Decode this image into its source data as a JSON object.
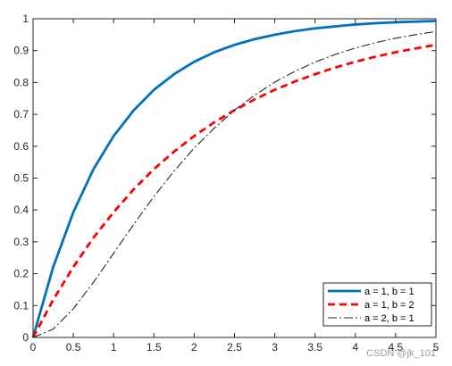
{
  "watermark": "CSDN @jk_101",
  "chart_data": {
    "type": "line",
    "title": "",
    "xlabel": "",
    "ylabel": "",
    "xlim": [
      0,
      5
    ],
    "ylim": [
      0,
      1
    ],
    "xticks": [
      "0",
      "0.5",
      "1",
      "1.5",
      "2",
      "2.5",
      "3",
      "3.5",
      "4",
      "4.5",
      "5"
    ],
    "yticks": [
      "0",
      "0.1",
      "0.2",
      "0.3",
      "0.4",
      "0.5",
      "0.6",
      "0.7",
      "0.8",
      "0.9",
      "1"
    ],
    "grid": false,
    "legend_position": "bottom-right",
    "x": [
      0,
      0.25,
      0.5,
      0.75,
      1,
      1.25,
      1.5,
      1.75,
      2,
      2.25,
      2.5,
      2.75,
      3,
      3.25,
      3.5,
      3.75,
      4,
      4.25,
      4.5,
      4.75,
      5
    ],
    "series": [
      {
        "name": "a = 1, b = 1",
        "color": "#0072BD",
        "style": "solid",
        "values": [
          0,
          0.221,
          0.393,
          0.528,
          0.632,
          0.713,
          0.777,
          0.826,
          0.865,
          0.895,
          0.918,
          0.936,
          0.95,
          0.961,
          0.97,
          0.976,
          0.982,
          0.986,
          0.989,
          0.991,
          0.993
        ]
      },
      {
        "name": "a = 1, b = 2",
        "color": "#FF0000",
        "style": "dashed",
        "values": [
          0,
          0.118,
          0.221,
          0.313,
          0.393,
          0.465,
          0.528,
          0.583,
          0.632,
          0.675,
          0.713,
          0.747,
          0.777,
          0.803,
          0.826,
          0.847,
          0.865,
          0.881,
          0.895,
          0.907,
          0.918
        ]
      },
      {
        "name": "a = 2, b = 1",
        "color": "#262626",
        "style": "dashdot",
        "values": [
          0,
          0.026,
          0.09,
          0.173,
          0.264,
          0.355,
          0.442,
          0.522,
          0.594,
          0.657,
          0.713,
          0.76,
          0.801,
          0.835,
          0.864,
          0.888,
          0.908,
          0.925,
          0.939,
          0.95,
          0.96
        ]
      }
    ]
  }
}
